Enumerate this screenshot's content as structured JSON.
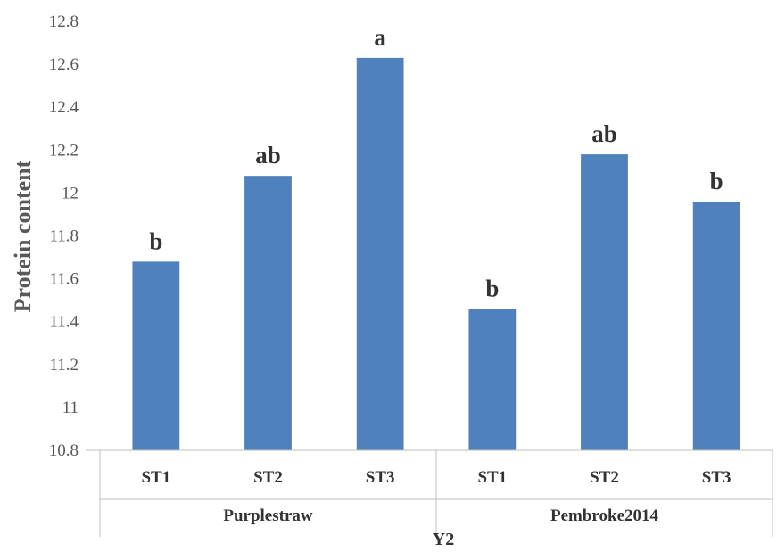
{
  "chart_data": {
    "type": "bar",
    "title": "",
    "xlabel": "Y2",
    "ylabel": "Protein content",
    "ylim": [
      10.8,
      12.8
    ],
    "yticks": [
      "10.8",
      "11",
      "11.2",
      "11.4",
      "11.6",
      "11.8",
      "12",
      "12.2",
      "12.4",
      "12.6",
      "12.8"
    ],
    "grid": false,
    "legend": "none",
    "groups": [
      {
        "name": "Purplestraw",
        "categories": [
          "ST1",
          "ST2",
          "ST3"
        ],
        "values": [
          11.68,
          12.08,
          12.63
        ],
        "labels": [
          "b",
          "ab",
          "a"
        ]
      },
      {
        "name": "Pembroke2014",
        "categories": [
          "ST1",
          "ST2",
          "ST3"
        ],
        "values": [
          11.46,
          12.18,
          11.96
        ],
        "labels": [
          "b",
          "ab",
          "b"
        ]
      }
    ],
    "colors": {
      "bar": "#4f81bd",
      "axis": "#bfbfbf"
    }
  }
}
